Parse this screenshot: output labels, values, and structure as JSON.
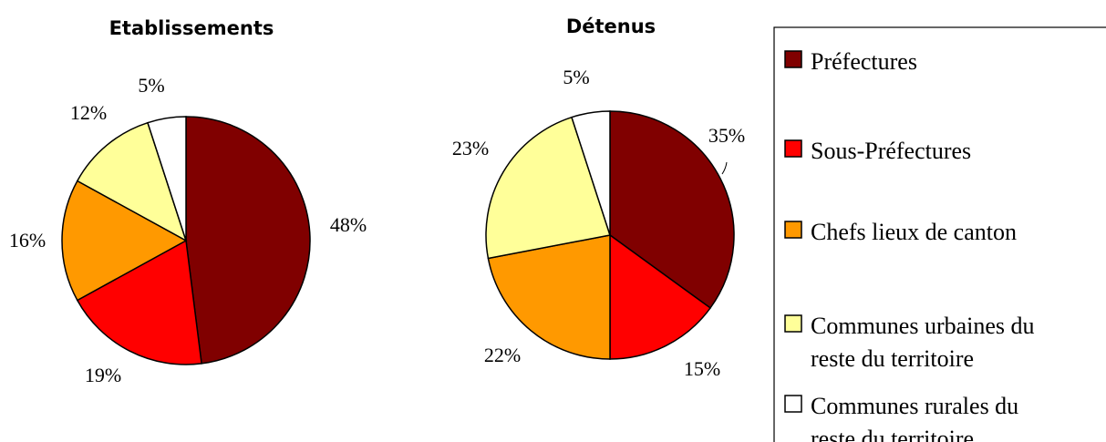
{
  "chart_data": [
    {
      "type": "pie",
      "title": "Etablissements",
      "categories": [
        "Préfectures",
        "Sous-Préfectures",
        "Chefs lieux de canton",
        "Communes urbaines du reste du territoire",
        "Communes rurales du reste du territoire"
      ],
      "values": [
        48,
        19,
        16,
        12,
        5
      ],
      "labels": [
        "48%",
        "19%",
        "16%",
        "12%",
        "5%"
      ]
    },
    {
      "type": "pie",
      "title": "Détenus",
      "categories": [
        "Préfectures",
        "Sous-Préfectures",
        "Chefs lieux de canton",
        "Communes urbaines du reste du territoire",
        "Communes rurales du reste du territoire"
      ],
      "values": [
        35,
        15,
        22,
        23,
        5
      ],
      "labels": [
        "35%",
        "15%",
        "22%",
        "23%",
        "5%"
      ]
    }
  ],
  "legend": {
    "position": "right",
    "items": [
      {
        "lines": [
          "Préfectures"
        ],
        "color": "#800000"
      },
      {
        "lines": [
          "Sous-Préfectures"
        ],
        "color": "#ff0000"
      },
      {
        "lines": [
          "Chefs lieux de canton"
        ],
        "color": "#ff9900"
      },
      {
        "lines": [
          "Communes urbaines du",
          "reste du territoire"
        ],
        "color": "#ffff99"
      },
      {
        "lines": [
          "Communes rurales du",
          "reste du territoire"
        ],
        "color": "#ffffff"
      }
    ]
  }
}
